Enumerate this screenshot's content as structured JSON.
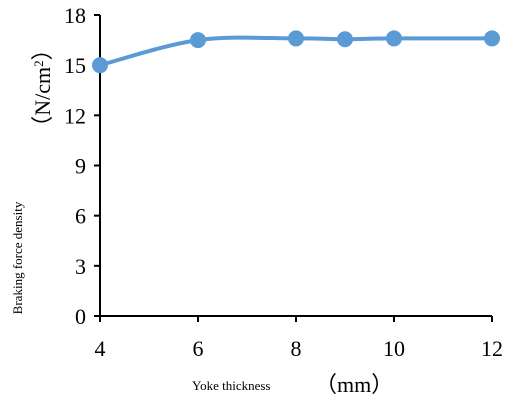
{
  "chart_data": {
    "type": "line",
    "x": [
      4,
      6,
      8,
      9,
      10,
      12
    ],
    "series": [
      {
        "values": [
          15.0,
          16.5,
          16.6,
          16.55,
          16.6,
          16.6
        ],
        "color": "#5b9bd5"
      }
    ],
    "xlim": [
      4,
      12
    ],
    "ylim": [
      0,
      18
    ],
    "xticks": [
      "4",
      "6",
      "8",
      "10",
      "12"
    ],
    "yticks": [
      "0",
      "3",
      "6",
      "9",
      "12",
      "15",
      "18"
    ],
    "xlabel": "Yoke thickness",
    "xlabel_unit": "（mm）",
    "ylabel": "Braking force density",
    "ylabel_unit_main": "（N/cm",
    "ylabel_unit_sup": "2",
    "ylabel_unit_close": "）",
    "grid": false,
    "axis_color": "#000000"
  }
}
